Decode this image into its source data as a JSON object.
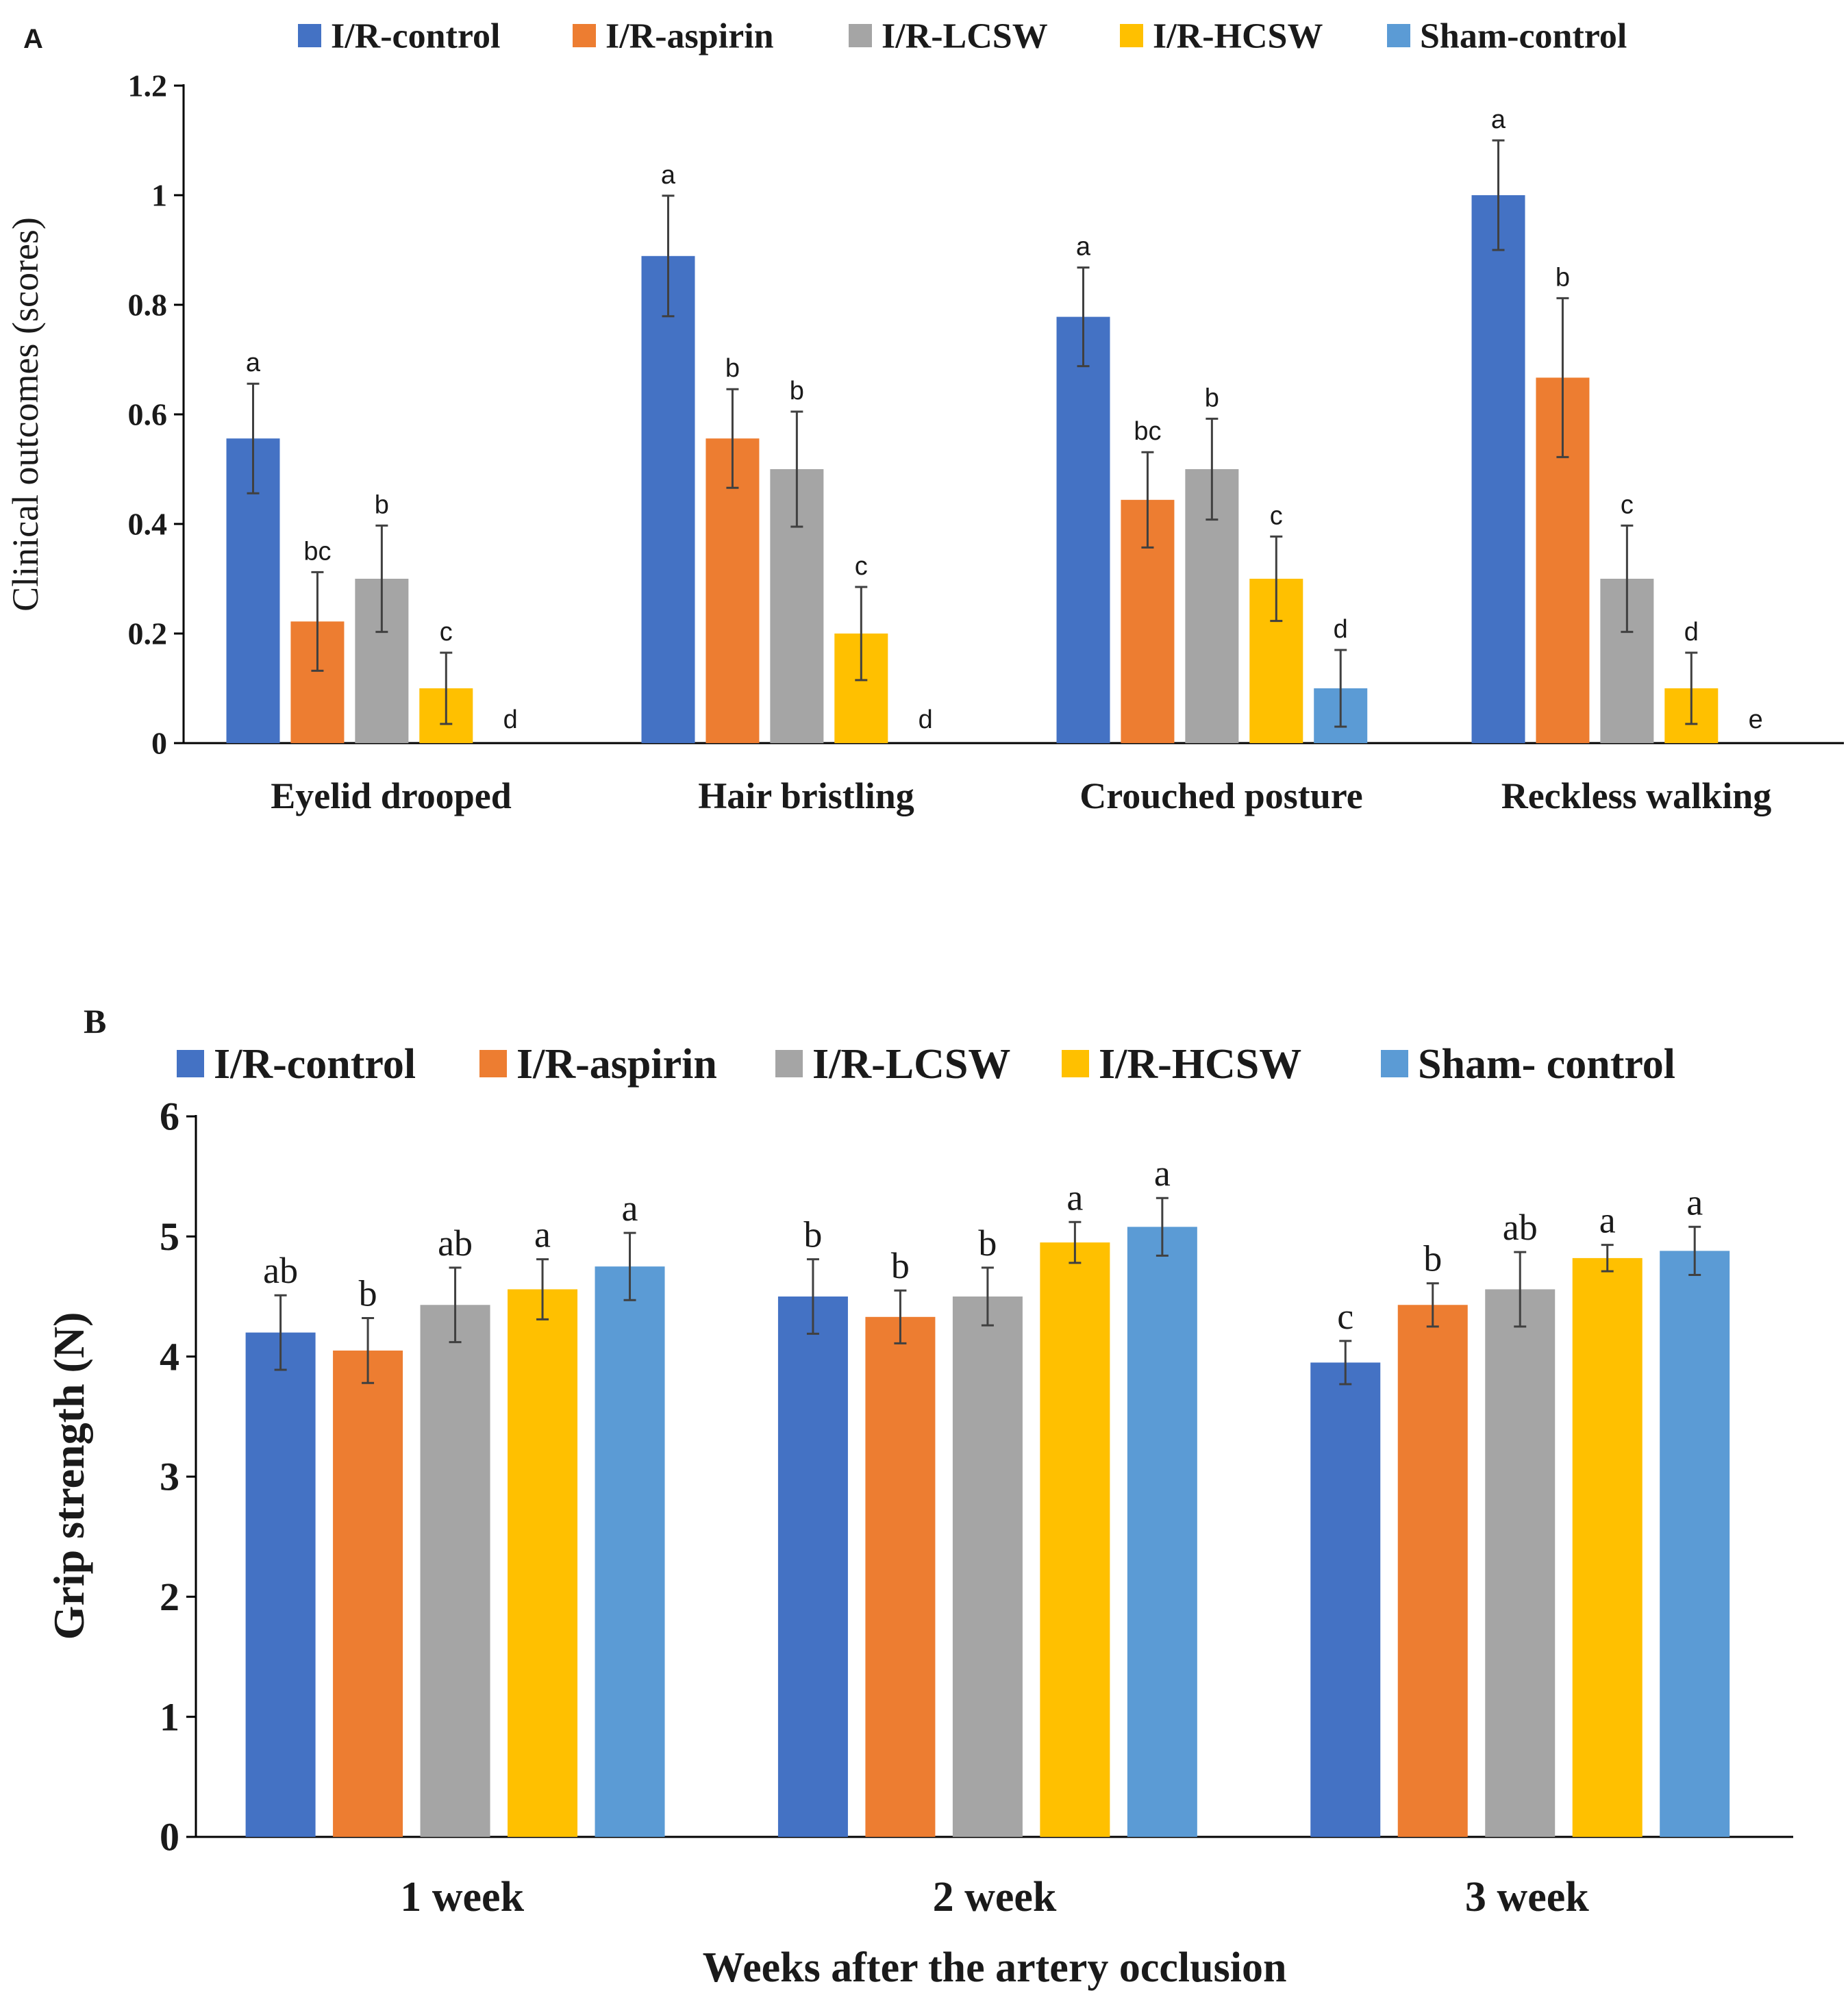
{
  "colors": {
    "I/R-control": "#4472c4",
    "I/R-aspirin": "#ed7d31",
    "I/R-LCSW": "#a5a5a5",
    "I/R-HCSW": "#ffc000",
    "Sham-control": "#5b9bd5",
    "axis": "#000000",
    "errorbar": "#404040"
  },
  "chart_data": [
    {
      "panel": "A",
      "type": "bar",
      "legend": [
        "I/R-control",
        "I/R-aspirin",
        "I/R-LCSW",
        "I/R-HCSW",
        "Sham-control"
      ],
      "categories": [
        "Eyelid drooped",
        "Hair bristling",
        "Crouched posture",
        "Reckless walking"
      ],
      "ylabel": "Clinical outcomes (scores)",
      "xlabel": "",
      "ylim": [
        0,
        1.2
      ],
      "yticks": [
        "0",
        "0.2",
        "0.4",
        "0.6",
        "0.8",
        "1",
        "1.2"
      ],
      "series": [
        {
          "name": "I/R-control",
          "values": [
            0.556,
            0.889,
            0.778,
            1.0
          ],
          "errors": [
            0.1,
            0.11,
            0.09,
            0.1
          ],
          "letters": [
            "a",
            "a",
            "a",
            "a"
          ]
        },
        {
          "name": "I/R-aspirin",
          "values": [
            0.222,
            0.556,
            0.444,
            0.667
          ],
          "errors": [
            0.09,
            0.09,
            0.087,
            0.145
          ],
          "letters": [
            "bc",
            "b",
            "bc",
            "b"
          ]
        },
        {
          "name": "I/R-LCSW",
          "values": [
            0.3,
            0.5,
            0.5,
            0.3
          ],
          "errors": [
            0.097,
            0.105,
            0.092,
            0.097
          ],
          "letters": [
            "b",
            "b",
            "b",
            "c"
          ]
        },
        {
          "name": "I/R-HCSW",
          "values": [
            0.1,
            0.2,
            0.3,
            0.1
          ],
          "errors": [
            0.065,
            0.085,
            0.077,
            0.065
          ],
          "letters": [
            "c",
            "c",
            "c",
            "d"
          ]
        },
        {
          "name": "Sham-control",
          "values": [
            0,
            0,
            0.1,
            0
          ],
          "errors": [
            0,
            0,
            0.07,
            0
          ],
          "letters": [
            "d",
            "d",
            "d",
            "e"
          ]
        }
      ]
    },
    {
      "panel": "B",
      "type": "bar",
      "legend": [
        "I/R-control",
        "I/R-aspirin",
        "I/R-LCSW",
        "I/R-HCSW",
        "Sham- control"
      ],
      "categories": [
        "1 week",
        "2 week",
        "3 week"
      ],
      "ylabel": "Grip strength (N)",
      "xlabel": "Weeks after the artery occlusion",
      "ylim": [
        0,
        6
      ],
      "yticks": [
        "0",
        "1",
        "2",
        "3",
        "4",
        "5",
        "6"
      ],
      "series": [
        {
          "name": "I/R-control",
          "values": [
            4.2,
            4.5,
            3.95
          ],
          "errors": [
            0.31,
            0.31,
            0.18
          ],
          "letters": [
            "ab",
            "b",
            "c"
          ]
        },
        {
          "name": "I/R-aspirin",
          "values": [
            4.05,
            4.33,
            4.43
          ],
          "errors": [
            0.27,
            0.22,
            0.18
          ],
          "letters": [
            "b",
            "b",
            "b"
          ]
        },
        {
          "name": "I/R-LCSW",
          "values": [
            4.43,
            4.5,
            4.56
          ],
          "errors": [
            0.31,
            0.24,
            0.31
          ],
          "letters": [
            "ab",
            "b",
            "ab"
          ]
        },
        {
          "name": "I/R-HCSW",
          "values": [
            4.56,
            4.95,
            4.82
          ],
          "errors": [
            0.25,
            0.17,
            0.11
          ],
          "letters": [
            "a",
            "a",
            "a"
          ]
        },
        {
          "name": "Sham- control",
          "values": [
            4.75,
            5.08,
            4.88
          ],
          "errors": [
            0.28,
            0.24,
            0.2
          ],
          "letters": [
            "a",
            "a",
            "a"
          ]
        }
      ]
    }
  ]
}
